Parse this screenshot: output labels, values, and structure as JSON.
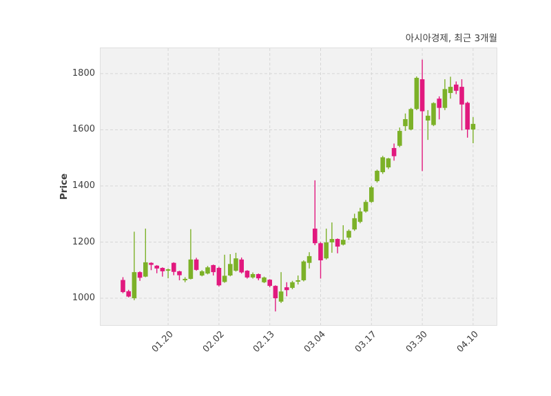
{
  "header": {
    "title": "아시아경제, 최근 3개월"
  },
  "y_axis": {
    "label": "Price",
    "ticks": [
      1000,
      1200,
      1400,
      1600,
      1800
    ]
  },
  "x_axis": {
    "tick_labels": [
      "01.20",
      "02.02",
      "02.13",
      "03.04",
      "03.17",
      "03.30",
      "04.10"
    ]
  },
  "colors": {
    "up": "#7CB128",
    "down": "#E1197E",
    "plot_bg": "#F2F2F2",
    "grid": "#D6D6D6",
    "axis_border": "#DFDFDF",
    "text": "#3D3D3D",
    "figure_bg": "#FFFFFF"
  },
  "chart_data": {
    "type": "candlestick",
    "title": "아시아경제, 최근 3개월",
    "xlabel": "",
    "ylabel": "Price",
    "grid": true,
    "legend": "none",
    "ylim": [
      902,
      1893
    ],
    "y_ticks": [
      1000,
      1200,
      1400,
      1600,
      1800
    ],
    "x_tick_labels": [
      "01.20",
      "02.02",
      "02.13",
      "03.04",
      "03.17",
      "03.30",
      "04.10"
    ],
    "x_tick_indices": [
      8,
      17,
      26,
      35,
      44,
      53,
      62
    ],
    "up_color": "#7CB128",
    "down_color": "#E1197E",
    "ohlc_order": [
      "open",
      "high",
      "low",
      "close"
    ],
    "candles": [
      [
        1065,
        1075,
        1018,
        1022
      ],
      [
        1025,
        1030,
        1003,
        1006
      ],
      [
        1000,
        1237,
        993,
        1093
      ],
      [
        1093,
        1096,
        1062,
        1073
      ],
      [
        1077,
        1248,
        1075,
        1128
      ],
      [
        1126,
        1128,
        1100,
        1119
      ],
      [
        1116,
        1118,
        1089,
        1106
      ],
      [
        1108,
        1110,
        1077,
        1096
      ],
      [
        1098,
        1106,
        1071,
        1103
      ],
      [
        1126,
        1128,
        1082,
        1094
      ],
      [
        1096,
        1098,
        1064,
        1082
      ],
      [
        1064,
        1075,
        1057,
        1069
      ],
      [
        1069,
        1246,
        1067,
        1138
      ],
      [
        1138,
        1144,
        1098,
        1101
      ],
      [
        1081,
        1100,
        1078,
        1096
      ],
      [
        1088,
        1115,
        1085,
        1110
      ],
      [
        1118,
        1120,
        1081,
        1093
      ],
      [
        1108,
        1112,
        1042,
        1046
      ],
      [
        1058,
        1155,
        1055,
        1080
      ],
      [
        1081,
        1157,
        1078,
        1122
      ],
      [
        1098,
        1162,
        1095,
        1142
      ],
      [
        1138,
        1145,
        1088,
        1092
      ],
      [
        1098,
        1100,
        1070,
        1074
      ],
      [
        1074,
        1092,
        1070,
        1086
      ],
      [
        1086,
        1088,
        1064,
        1071
      ],
      [
        1057,
        1077,
        1054,
        1074
      ],
      [
        1066,
        1068,
        1039,
        1044
      ],
      [
        1044,
        1046,
        953,
        1000
      ],
      [
        988,
        1093,
        983,
        1024
      ],
      [
        1039,
        1057,
        1007,
        1029
      ],
      [
        1037,
        1062,
        1032,
        1057
      ],
      [
        1059,
        1081,
        1049,
        1064
      ],
      [
        1064,
        1135,
        1060,
        1131
      ],
      [
        1126,
        1164,
        1106,
        1150
      ],
      [
        1248,
        1420,
        1189,
        1196
      ],
      [
        1196,
        1200,
        1070,
        1135
      ],
      [
        1142,
        1248,
        1138,
        1199
      ],
      [
        1199,
        1270,
        1162,
        1211
      ],
      [
        1211,
        1213,
        1160,
        1184
      ],
      [
        1191,
        1260,
        1188,
        1208
      ],
      [
        1216,
        1245,
        1208,
        1240
      ],
      [
        1245,
        1301,
        1240,
        1285
      ],
      [
        1272,
        1322,
        1267,
        1309
      ],
      [
        1309,
        1350,
        1305,
        1343
      ],
      [
        1343,
        1400,
        1340,
        1395
      ],
      [
        1417,
        1458,
        1412,
        1454
      ],
      [
        1449,
        1507,
        1443,
        1502
      ],
      [
        1466,
        1500,
        1460,
        1498
      ],
      [
        1535,
        1551,
        1490,
        1506
      ],
      [
        1543,
        1608,
        1538,
        1596
      ],
      [
        1613,
        1658,
        1596,
        1638
      ],
      [
        1601,
        1678,
        1598,
        1674
      ],
      [
        1674,
        1790,
        1670,
        1785
      ],
      [
        1780,
        1850,
        1453,
        1666
      ],
      [
        1633,
        1670,
        1564,
        1650
      ],
      [
        1617,
        1698,
        1613,
        1695
      ],
      [
        1711,
        1719,
        1637,
        1678
      ],
      [
        1678,
        1780,
        1670,
        1745
      ],
      [
        1731,
        1789,
        1711,
        1753
      ],
      [
        1761,
        1772,
        1727,
        1739
      ],
      [
        1753,
        1780,
        1598,
        1690
      ],
      [
        1696,
        1700,
        1572,
        1601
      ],
      [
        1601,
        1645,
        1552,
        1621
      ]
    ]
  }
}
